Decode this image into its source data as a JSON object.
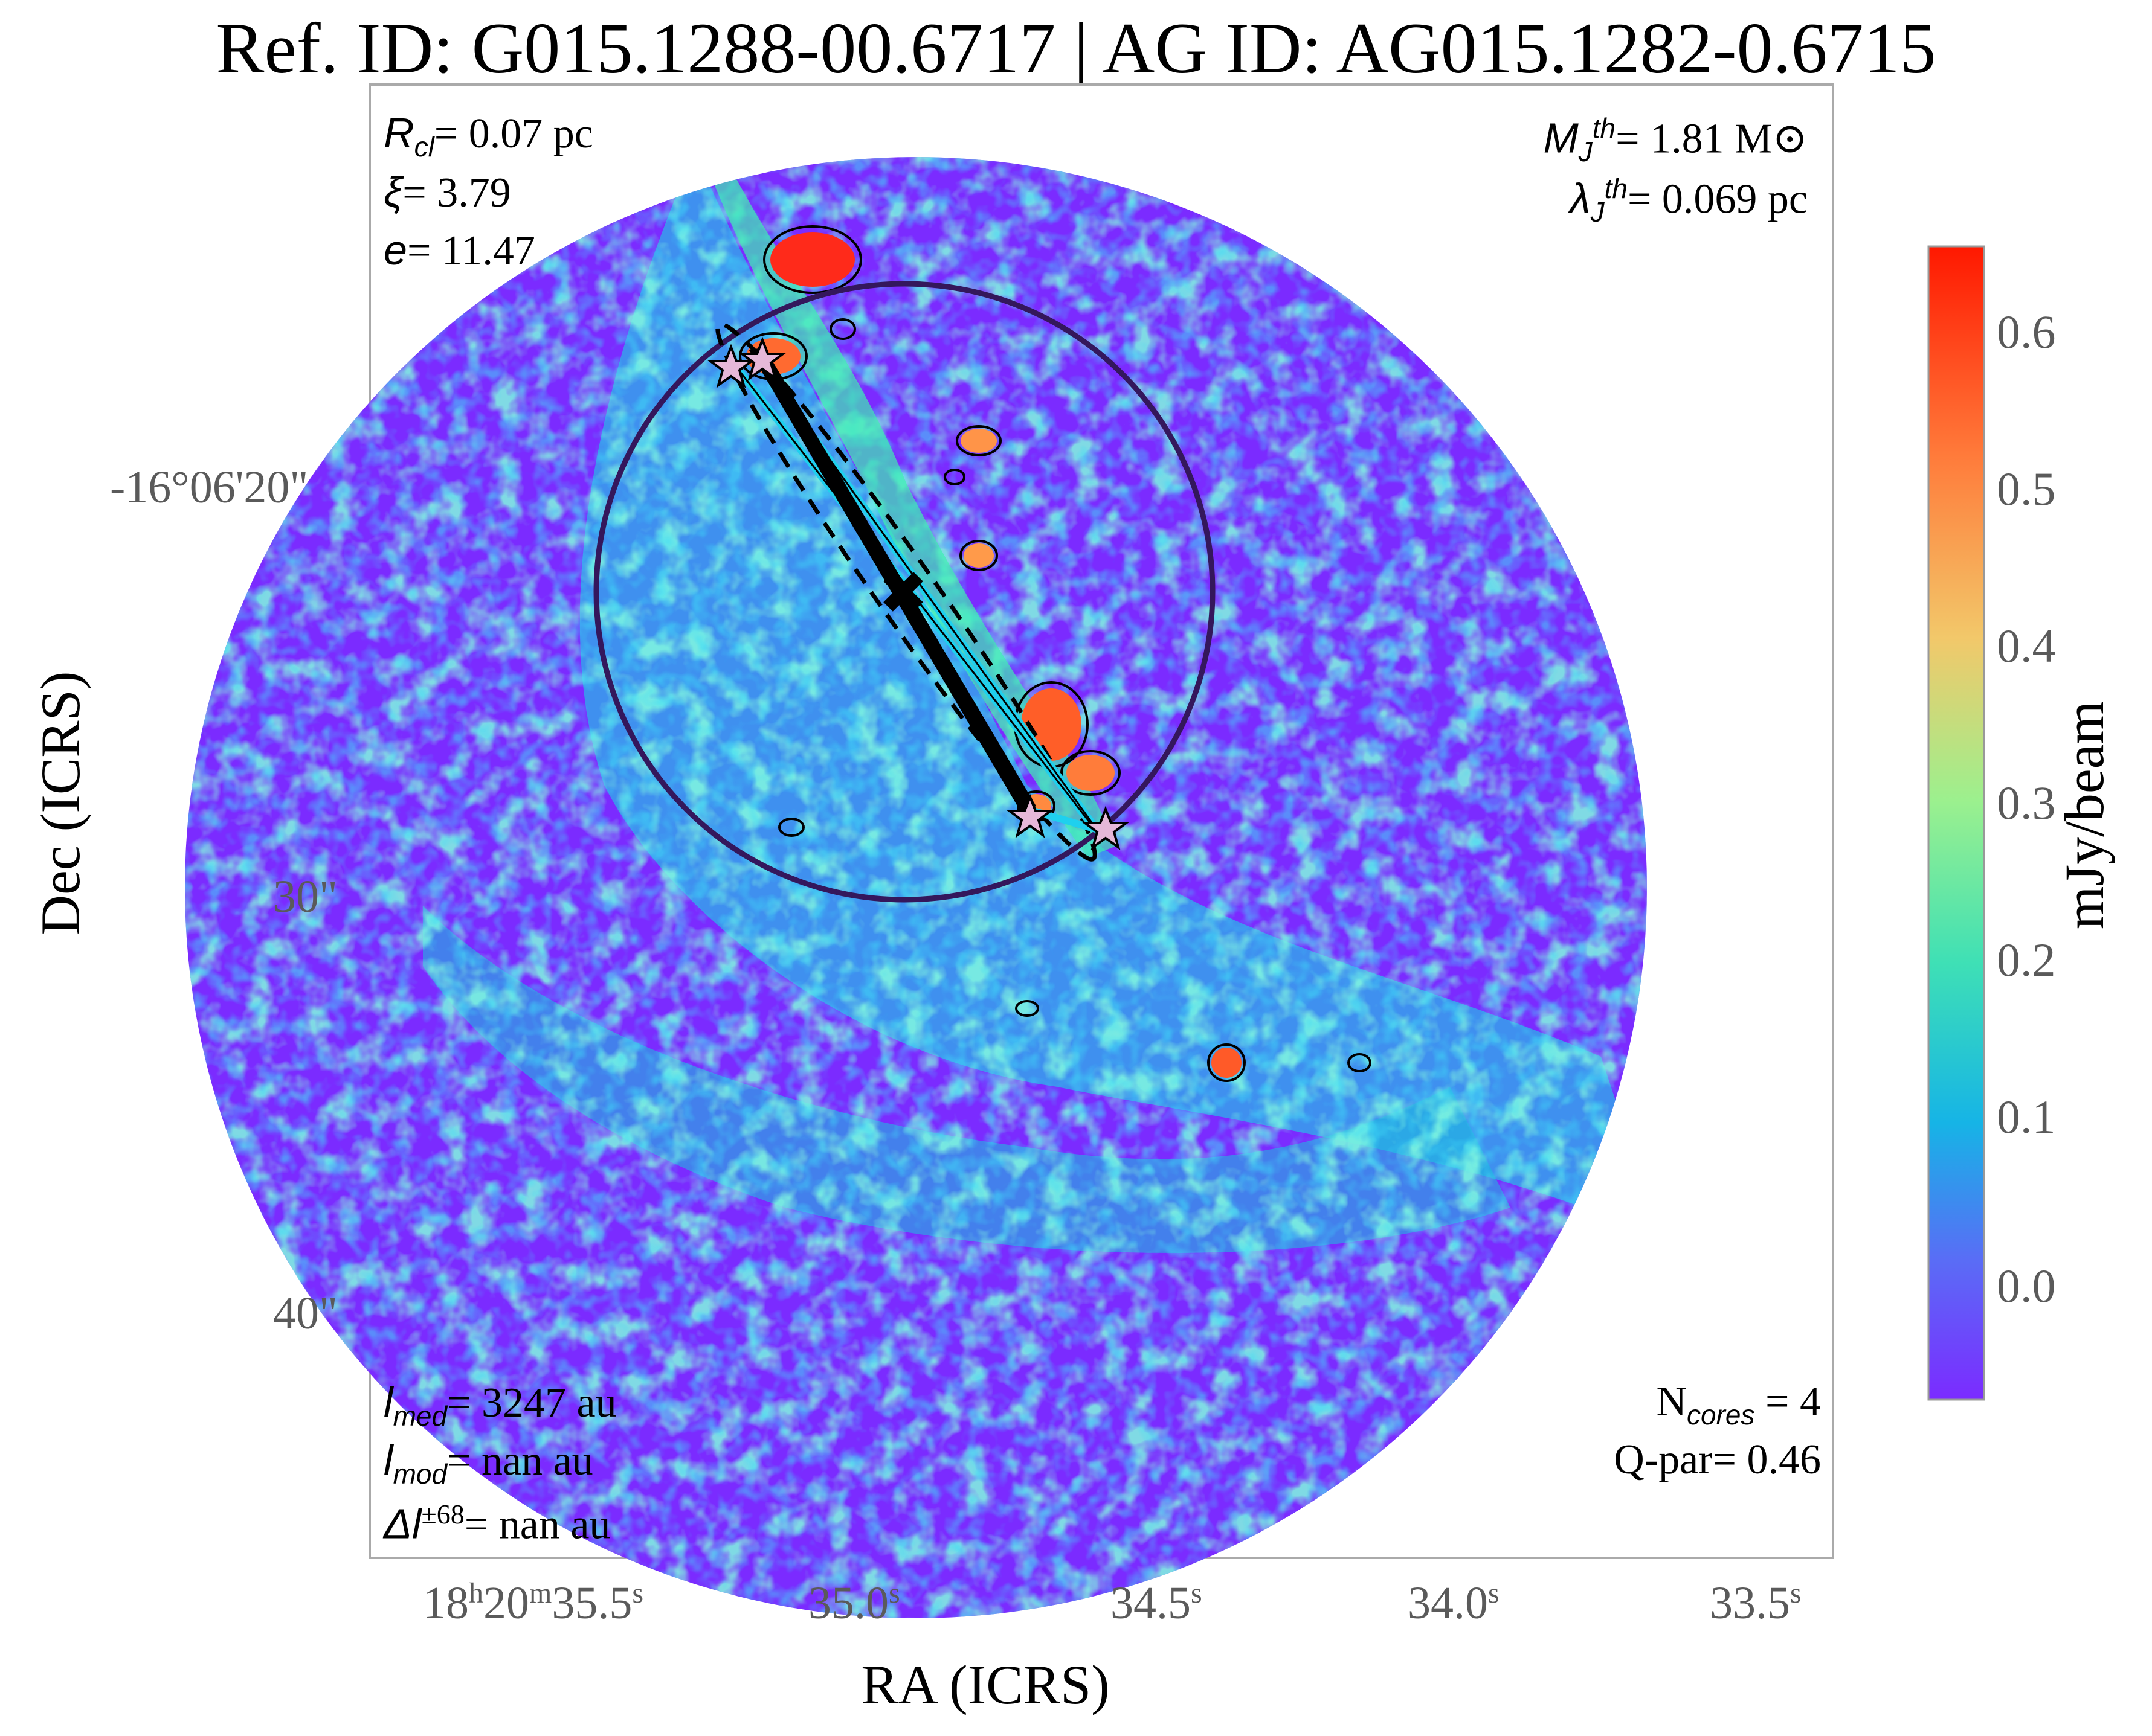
{
  "title": "Ref. ID: G015.1288-00.6717 | AG ID: AG015.1282-0.6715",
  "axes": {
    "xlabel": "RA (ICRS)",
    "ylabel": "Dec (ICRS)",
    "ra_ticks": [
      {
        "h": "18",
        "m": "20",
        "s": "35.5",
        "pre": "18",
        "hsup": "h",
        "mid": "20",
        "msup": "m",
        "sec": "35.5",
        "ssup": "s"
      },
      {
        "sec": "35.0",
        "ssup": "s"
      },
      {
        "sec": "34.5",
        "ssup": "s"
      },
      {
        "sec": "34.0",
        "ssup": "s"
      },
      {
        "sec": "33.5",
        "ssup": "s"
      }
    ],
    "dec_ticks": [
      "-16°06'20\"",
      "30\"",
      "40\""
    ]
  },
  "annotations": {
    "r_cl_sym": "R",
    "r_cl_sub": "cl",
    "r_cl_val": "= 0.07 pc",
    "xi_sym": "ξ",
    "xi_val": "= 3.79",
    "e_sym": "e",
    "e_val": "= 11.47",
    "mj_sym": "M",
    "mj_sub": "J",
    "mj_sup": "th",
    "mj_val": "= 1.81 M⊙",
    "lj_sym": "λ",
    "lj_sub": "J",
    "lj_sup": "th",
    "lj_val": "= 0.069 pc",
    "lmed_sym": "l",
    "lmed_sub": "med",
    "lmed_val": "= 3247 au",
    "lmod_sym": "l",
    "lmod_sub": "mod",
    "lmod_val": "= nan au",
    "dl_sym": "Δl",
    "dl_sup": "±68",
    "dl_val": "= nan au",
    "ncores_pre": "N",
    "ncores_sub": "cores",
    "ncores_val": " = 4",
    "qpar": "Q-par= 0.46"
  },
  "colorbar": {
    "label": "mJy/beam",
    "ticks": [
      "0.6",
      "0.5",
      "0.4",
      "0.3",
      "0.2",
      "0.1",
      "0.0"
    ],
    "colors": [
      "#ff1800",
      "#ff7a3a",
      "#f2c86a",
      "#9cf08e",
      "#3fe0b5",
      "#16b4e6",
      "#5a6cf6",
      "#7b2bff"
    ]
  },
  "features": {
    "cores": 4,
    "filament_color": "#000000",
    "fit_line_color": "#1fd0ee",
    "circle_color": "#34175c"
  }
}
